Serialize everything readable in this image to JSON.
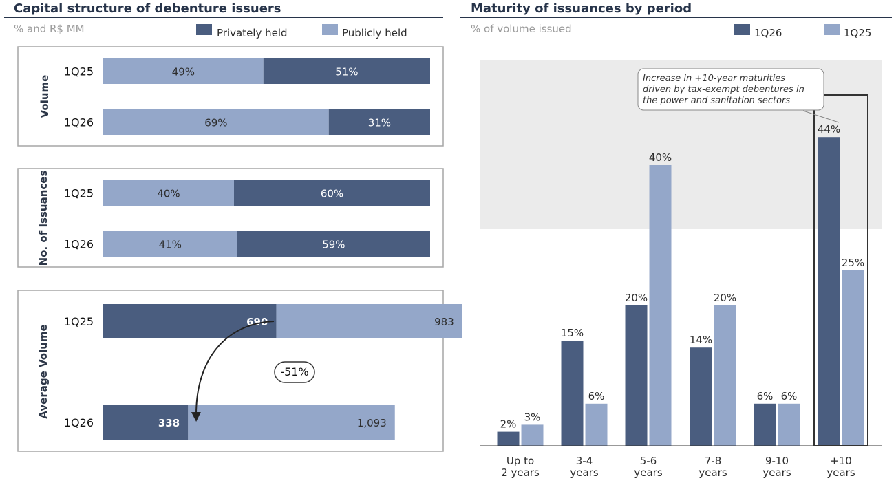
{
  "colors": {
    "dark": "#4a5d7f",
    "light": "#94a7c9",
    "title": "#27344a",
    "highlight_bg": "#ebebeb",
    "frame": "#a6a6a6"
  },
  "left": {
    "title": "Capital structure of debenture issuers",
    "subtitle": "% and R$ MM",
    "legend": {
      "private": "Privately held",
      "public": "Publicly held"
    },
    "volume_title": "Volume",
    "issuances_title": "No. of Issuances",
    "average_title": "Average Volume",
    "callout": "-51%"
  },
  "right": {
    "title": "Maturity of issuances by period",
    "subtitle": "% of volume issued",
    "legend": {
      "current": "1Q26",
      "previous": "1Q25"
    },
    "note_lines": [
      "Increase in +10-year maturities",
      "driven by tax-exempt debentures in",
      "the power and sanitation sectors"
    ]
  },
  "chart_data": [
    {
      "type": "bar",
      "orientation": "horizontal",
      "stacked": true,
      "normalized": true,
      "title": "Volume",
      "categories": [
        "1Q25",
        "1Q26"
      ],
      "series": [
        {
          "name": "Publicly held",
          "values": [
            49,
            69
          ],
          "labels": [
            "49%",
            "69%"
          ]
        },
        {
          "name": "Privately held",
          "values": [
            51,
            31
          ],
          "labels": [
            "51%",
            "31%"
          ]
        }
      ]
    },
    {
      "type": "bar",
      "orientation": "horizontal",
      "stacked": true,
      "normalized": true,
      "title": "No. of Issuances",
      "categories": [
        "1Q25",
        "1Q26"
      ],
      "series": [
        {
          "name": "Publicly held",
          "values": [
            40,
            41
          ],
          "labels": [
            "40%",
            "41%"
          ]
        },
        {
          "name": "Privately held",
          "values": [
            60,
            59
          ],
          "labels": [
            "60%",
            "59%"
          ]
        }
      ]
    },
    {
      "type": "bar",
      "orientation": "horizontal",
      "title": "Average Volume",
      "categories": [
        "1Q25",
        "1Q26"
      ],
      "series": [
        {
          "name": "Privately held",
          "values": [
            690,
            338
          ],
          "labels": [
            "690",
            "338"
          ]
        },
        {
          "name": "Publicly held",
          "values": [
            983,
            1093
          ],
          "labels": [
            "983",
            "1,093"
          ]
        }
      ],
      "annotation": "-51%"
    },
    {
      "type": "bar",
      "title": "Maturity of issuances by period",
      "categories": [
        [
          "Up to",
          "2 years"
        ],
        [
          "3-4",
          "years"
        ],
        [
          "5-6",
          "years"
        ],
        [
          "7-8",
          "years"
        ],
        [
          "9-10",
          "years"
        ],
        [
          "+10",
          "years"
        ]
      ],
      "series": [
        {
          "name": "1Q26",
          "values": [
            2,
            15,
            20,
            14,
            6,
            44
          ],
          "labels": [
            "2%",
            "15%",
            "20%",
            "14%",
            "6%",
            "44%"
          ]
        },
        {
          "name": "1Q25",
          "values": [
            3,
            6,
            40,
            20,
            6,
            25
          ],
          "labels": [
            "3%",
            "6%",
            "40%",
            "20%",
            "6%",
            "25%"
          ]
        }
      ],
      "ylim": [
        0,
        50
      ],
      "highlight_category": "+10"
    }
  ]
}
